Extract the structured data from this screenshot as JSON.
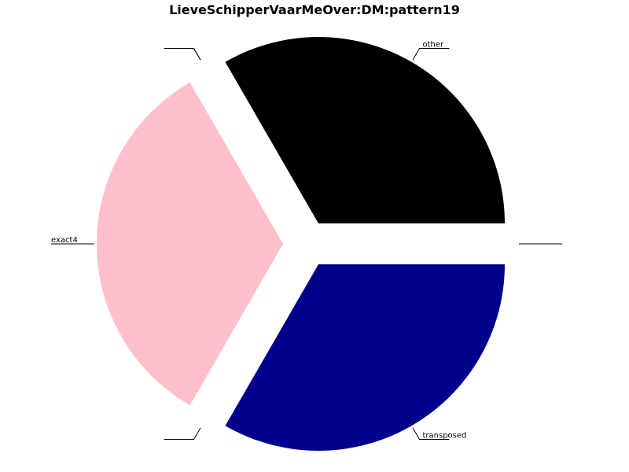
{
  "chart_data": {
    "type": "pie",
    "title": "LieveSchipperVaarMeOver:DM:pattern19",
    "slices": [
      {
        "label": "other",
        "value": 1,
        "color": "#000000"
      },
      {
        "label": "",
        "value": 0,
        "color": "#ff0000"
      },
      {
        "label": "",
        "value": 0,
        "color": "#00ff00"
      },
      {
        "label": "exact4",
        "value": 1,
        "color": "#ffc0cb"
      },
      {
        "label": "",
        "value": 0,
        "color": "#ffff00"
      },
      {
        "label": "transposed",
        "value": 1,
        "color": "#00008b"
      },
      {
        "label": "",
        "value": 0,
        "color": "#808080"
      }
    ],
    "start_angle_deg": 0,
    "direction": "counterclockwise",
    "exploded": true,
    "legend": "none"
  }
}
